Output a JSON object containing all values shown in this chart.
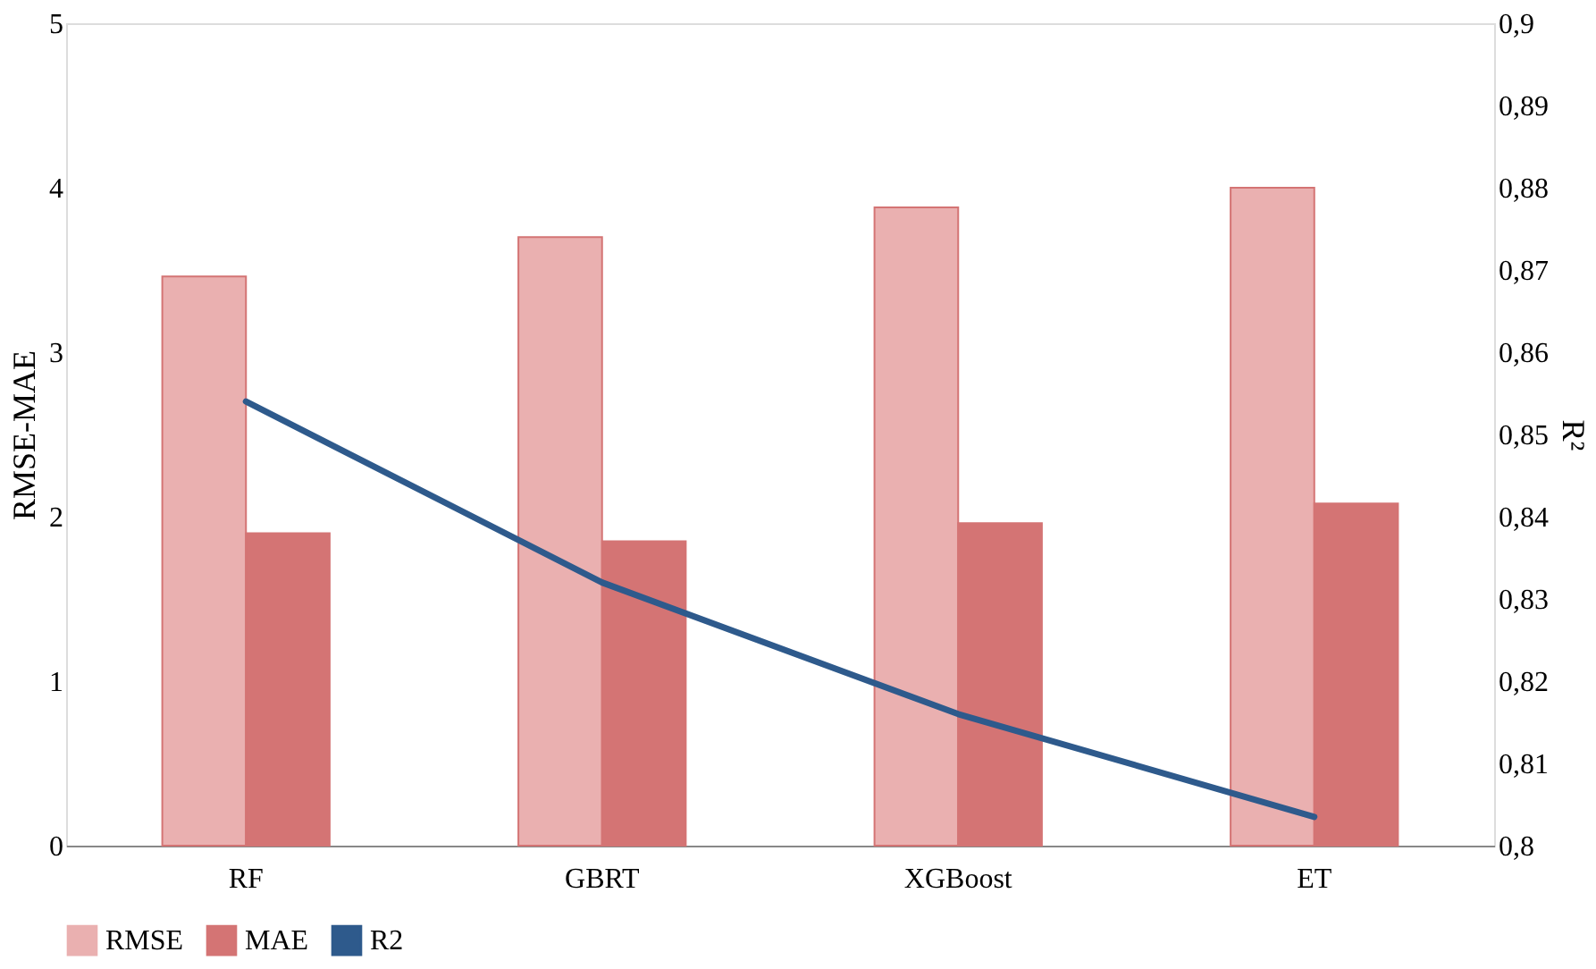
{
  "chart_data": {
    "type": "bar",
    "ylabel": "RMSE-MAE",
    "y2label": "R²",
    "categories": [
      "RF",
      "GBRT",
      "XGBoost",
      "ET"
    ],
    "series": [
      {
        "name": "RMSE",
        "color": "#eab0b0",
        "values": [
          3.46,
          3.7,
          3.88,
          4.0
        ]
      },
      {
        "name": "MAE",
        "color": "#d47474",
        "values": [
          1.9,
          1.85,
          1.96,
          2.08
        ]
      },
      {
        "name": "R2",
        "type": "line",
        "axis": "y2",
        "color": "#2e5a8c",
        "values": [
          0.854,
          0.832,
          0.816,
          0.8035
        ]
      }
    ],
    "ylim": [
      0,
      5
    ],
    "yticks": [
      0,
      1,
      2,
      3,
      4,
      5
    ],
    "y2lim": [
      0.8,
      0.9
    ],
    "y2ticks": [
      {
        "value": 0.8,
        "label": "0,8"
      },
      {
        "value": 0.81,
        "label": "0,81"
      },
      {
        "value": 0.82,
        "label": "0,82"
      },
      {
        "value": 0.83,
        "label": "0,83"
      },
      {
        "value": 0.84,
        "label": "0,84"
      },
      {
        "value": 0.85,
        "label": "0,85"
      },
      {
        "value": 0.86,
        "label": "0,86"
      },
      {
        "value": 0.87,
        "label": "0,87"
      },
      {
        "value": 0.88,
        "label": "0,88"
      },
      {
        "value": 0.89,
        "label": "0,89"
      },
      {
        "value": 0.9,
        "label": "0,9"
      }
    ],
    "grid": false,
    "legend": "bottom",
    "marker": "none",
    "line_style": "solid"
  }
}
